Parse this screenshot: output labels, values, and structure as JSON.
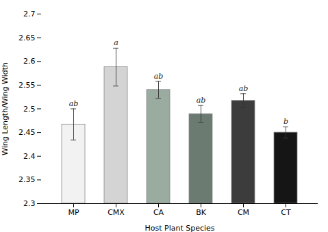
{
  "chart_data": {
    "type": "bar",
    "categories": [
      "MP",
      "CMX",
      "CA",
      "BK",
      "CM",
      "CT"
    ],
    "values": [
      2.467,
      2.588,
      2.54,
      2.489,
      2.517,
      2.45
    ],
    "errors": [
      0.033,
      0.04,
      0.018,
      0.018,
      0.015,
      0.012
    ],
    "labels": [
      "ab",
      "a",
      "ab",
      "ab",
      "ab",
      "b"
    ],
    "colors": [
      "#f2f2f2",
      "#d4d4d4",
      "#9aaba0",
      "#6b7b72",
      "#3c3c3c",
      "#151515"
    ],
    "xlabel": "Host Plant Species",
    "ylabel": "Wing Length/Wing Width",
    "ylim": [
      2.3,
      2.7
    ],
    "yticks": [
      2.3,
      2.35,
      2.4,
      2.45,
      2.5,
      2.55,
      2.6,
      2.65,
      2.7
    ],
    "grid": false
  }
}
